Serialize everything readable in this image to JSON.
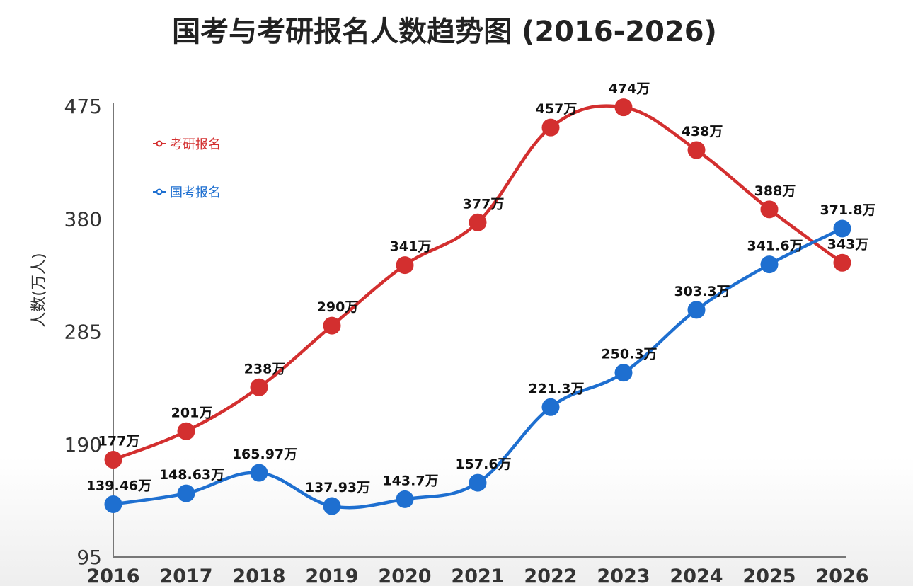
{
  "chart_data": {
    "type": "line",
    "title": "国考与考研报名人数趋势图 (2016-2026)",
    "xlabel": "",
    "ylabel": "人数(万人)",
    "ylim": [
      95,
      475
    ],
    "yticks": [
      95,
      190,
      285,
      380,
      475
    ],
    "categories": [
      "2016",
      "2017",
      "2018",
      "2019",
      "2020",
      "2021",
      "2022",
      "2023",
      "2024",
      "2025",
      "2026"
    ],
    "legend_placement": "top-left",
    "grid": false,
    "unit_suffix": "万",
    "series": [
      {
        "name": "考研报名",
        "color": "#d32f2f",
        "values": [
          177,
          201,
          238,
          290,
          341,
          377,
          457,
          474,
          438,
          388,
          343
        ],
        "labels": [
          "177万",
          "201万",
          "238万",
          "290万",
          "341万",
          "377万",
          "457万",
          "474万",
          "438万",
          "388万",
          "343万"
        ]
      },
      {
        "name": "国考报名",
        "color": "#1e6fd0",
        "values": [
          139.46,
          148.63,
          165.97,
          137.93,
          143.7,
          157.6,
          221.3,
          250.3,
          303.3,
          341.6,
          371.8
        ],
        "labels": [
          "139.46万",
          "148.63万",
          "165.97万",
          "137.93万",
          "143.7万",
          "157.6万",
          "221.3万",
          "250.3万",
          "303.3万",
          "341.6万",
          "371.8万"
        ]
      }
    ]
  }
}
